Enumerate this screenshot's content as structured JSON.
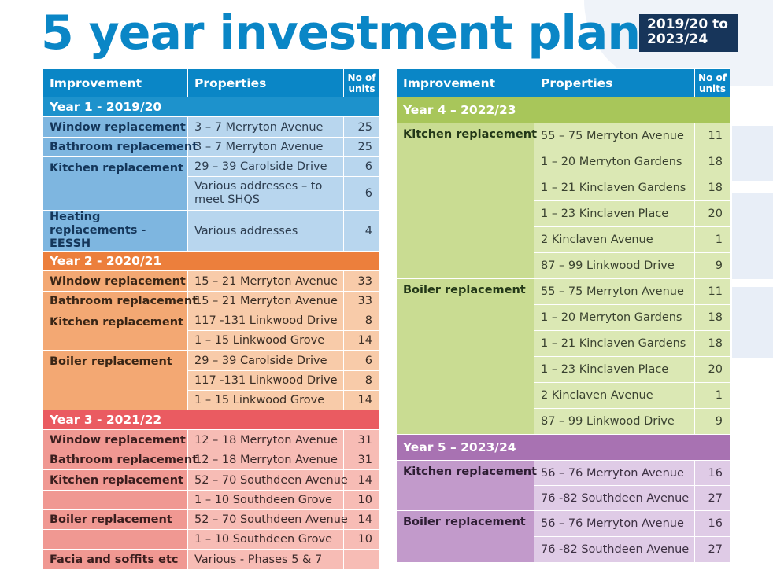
{
  "title": "5 year investment plan",
  "badge": {
    "line1": "2019/20 to",
    "line2": "2023/24"
  },
  "headers": {
    "improvement": "Improvement",
    "properties": "Properties",
    "units": "No of units"
  },
  "years": {
    "y1": {
      "label": "Year 1 - 2019/20",
      "rows": [
        {
          "improvement": "Window replacement",
          "property": "3 – 7 Merryton Avenue",
          "units": "25"
        },
        {
          "improvement": "Bathroom replacement",
          "property": "3 – 7 Merryton Avenue",
          "units": "25"
        },
        {
          "improvement": "Kitchen replacement",
          "property": "29 – 39 Carolside Drive",
          "units": "6"
        },
        {
          "improvement": "",
          "property": "Various addresses – to meet SHQS",
          "units": "6"
        },
        {
          "improvement": "Heating replacements - EESSH",
          "property": "Various addresses",
          "units": "4"
        }
      ]
    },
    "y2": {
      "label": "Year 2 - 2020/21",
      "rows": [
        {
          "improvement": "Window replacement",
          "property": "15 – 21 Merryton Avenue",
          "units": "33"
        },
        {
          "improvement": "Bathroom replacement",
          "property": "15 – 21 Merryton Avenue",
          "units": "33"
        },
        {
          "improvement": "Kitchen replacement",
          "property": "117 -131 Linkwood Drive",
          "units": "8"
        },
        {
          "improvement": "",
          "property": "1 – 15 Linkwood Grove",
          "units": "14"
        },
        {
          "improvement": "Boiler replacement",
          "property": "29 – 39 Carolside Drive",
          "units": "6"
        },
        {
          "improvement": "",
          "property": "117 -131 Linkwood Drive",
          "units": "8"
        },
        {
          "improvement": "",
          "property": "1 – 15 Linkwood Grove",
          "units": "14"
        }
      ]
    },
    "y3": {
      "label": "Year 3 - 2021/22",
      "rows": [
        {
          "improvement": "Window replacement",
          "property": "12 – 18 Merryton Avenue",
          "units": "31"
        },
        {
          "improvement": "Bathroom replacement",
          "property": "12 – 18 Merryton Avenue",
          "units": "31"
        },
        {
          "improvement": "Kitchen replacement",
          "property": "52 – 70 Southdeen Avenue",
          "units": "14"
        },
        {
          "improvement": "",
          "property": "1 – 10 Southdeen Grove",
          "units": "10"
        },
        {
          "improvement": "Boiler replacement",
          "property": "52 – 70 Southdeen Avenue",
          "units": "14"
        },
        {
          "improvement": "",
          "property": "1 – 10 Southdeen Grove",
          "units": "10"
        },
        {
          "improvement": "Facia and soffits etc",
          "property": "Various - Phases 5 & 7",
          "units": ""
        }
      ]
    },
    "y4": {
      "label": "Year 4 – 2022/23",
      "rows": [
        {
          "improvement": "Kitchen replacement",
          "property": "55 – 75 Merryton Avenue",
          "units": "11"
        },
        {
          "improvement": "",
          "property": "1 – 20 Merryton Gardens",
          "units": "18"
        },
        {
          "improvement": "",
          "property": "1 – 21 Kinclaven Gardens",
          "units": "18"
        },
        {
          "improvement": "",
          "property": "1 – 23 Kinclaven Place",
          "units": "20"
        },
        {
          "improvement": "",
          "property": "2 Kinclaven Avenue",
          "units": "1"
        },
        {
          "improvement": "",
          "property": "87 – 99 Linkwood Drive",
          "units": "9"
        },
        {
          "improvement": "Boiler replacement",
          "property": "55 – 75 Merryton Avenue",
          "units": "11"
        },
        {
          "improvement": "",
          "property": "1 – 20 Merryton Gardens",
          "units": "18"
        },
        {
          "improvement": "",
          "property": "1 – 21 Kinclaven Gardens",
          "units": "18"
        },
        {
          "improvement": "",
          "property": "1 – 23 Kinclaven Place",
          "units": "20"
        },
        {
          "improvement": "",
          "property": "2 Kinclaven Avenue",
          "units": "1"
        },
        {
          "improvement": "",
          "property": "87 – 99 Linkwood Drive",
          "units": "9"
        }
      ]
    },
    "y5": {
      "label": "Year 5 – 2023/24",
      "rows": [
        {
          "improvement": "Kitchen replacement",
          "property": "56 – 76 Merryton Avenue",
          "units": "16"
        },
        {
          "improvement": "",
          "property": "76 -82 Southdeen Avenue",
          "units": "27"
        },
        {
          "improvement": "Boiler replacement",
          "property": "56 – 76 Merryton Avenue",
          "units": "16"
        },
        {
          "improvement": "",
          "property": "76 -82 Southdeen Avenue",
          "units": "27"
        }
      ]
    }
  },
  "colors": {
    "title": "#0a86c6",
    "header": "#0a86c6",
    "badge": "#17355a",
    "year1": "#1d92cc",
    "year2": "#ec7f3c",
    "year3": "#ea5b61",
    "year4": "#a8c65a",
    "year5": "#a872b2"
  }
}
